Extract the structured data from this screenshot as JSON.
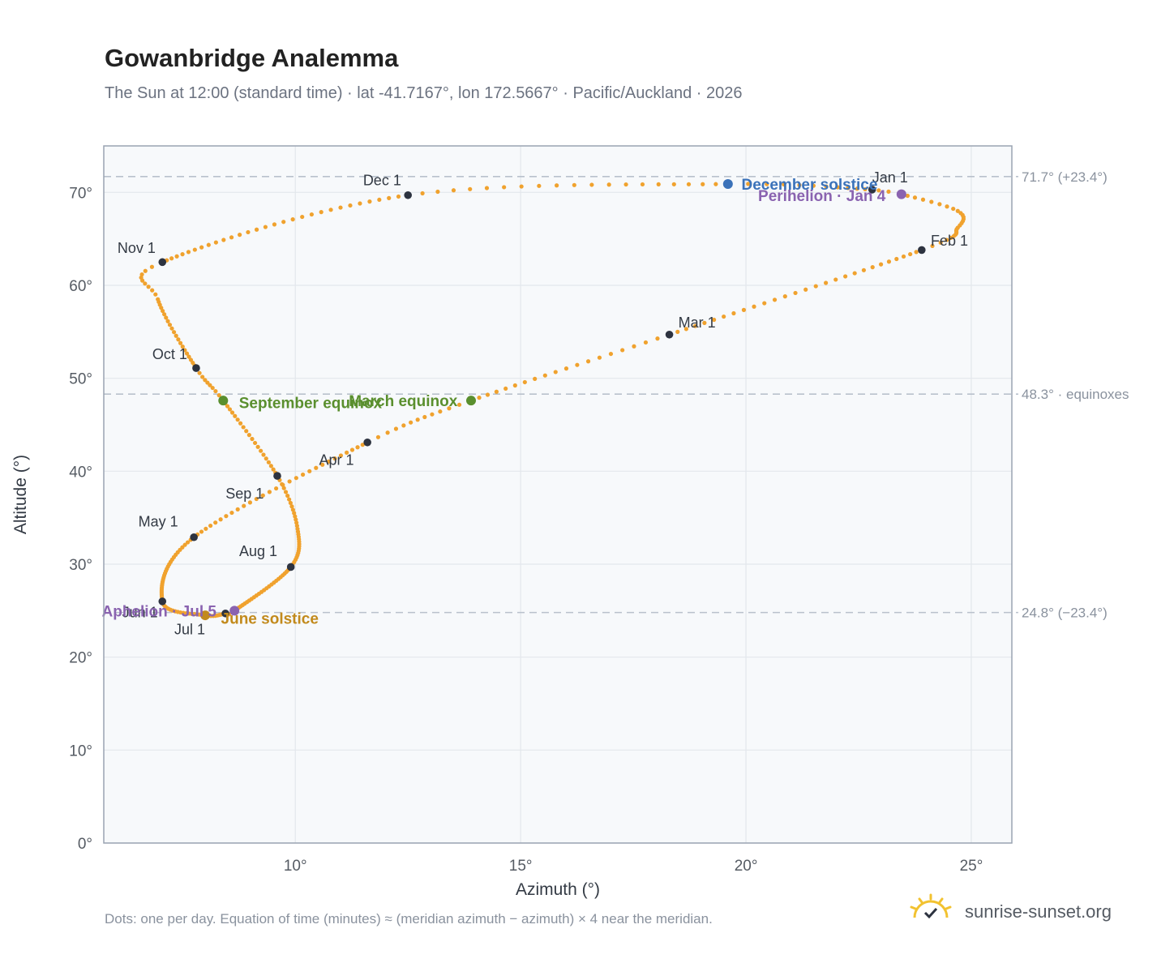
{
  "header": {
    "title": "Gowanbridge Analemma",
    "subtitle": "The Sun at 12:00 (standard time) · lat -41.7167°, lon 172.5667° · Pacific/Auckland · 2026"
  },
  "footer": {
    "note": "Dots: one per day. Equation of time (minutes) ≈ (meridian azimuth − azimuth) × 4 near the meridian.",
    "brand": "sunrise-sunset.org"
  },
  "colors": {
    "path": "#f0a22e",
    "month_marker": "#2d3340",
    "equinox": "#5a8f2e",
    "december_solstice": "#3b72b9",
    "june_solstice": "#c28a1c",
    "aphelion_perihelion": "#8a63b0",
    "reference_line": "#b9c1cc",
    "grid": "#e3e7ec",
    "plot_background": "#f7f9fb",
    "axis_frame": "#9aa4b2"
  },
  "chart_data": {
    "type": "scatter",
    "title": "Gowanbridge Analemma",
    "xlabel": "Azimuth (°)",
    "ylabel": "Altitude (°)",
    "xlim": [
      5.75,
      25.9
    ],
    "ylim": [
      0,
      75
    ],
    "x_ticks": [
      10,
      15,
      20,
      25
    ],
    "x_tick_labels": [
      "10°",
      "15°",
      "20°",
      "25°"
    ],
    "y_ticks": [
      0,
      10,
      20,
      30,
      40,
      50,
      60,
      70
    ],
    "y_tick_labels": [
      "0°",
      "10°",
      "20°",
      "30°",
      "40°",
      "50°",
      "60°",
      "70°"
    ],
    "grid": true,
    "reference_lines": [
      {
        "y": 71.7,
        "label": "71.7° (+23.4°)"
      },
      {
        "y": 48.3,
        "label": "48.3° · equinoxes"
      },
      {
        "y": 24.8,
        "label": "24.8° (−23.4°)"
      }
    ],
    "path_keypoints": [
      {
        "day": 1,
        "x": 22.8,
        "y": 70.3
      },
      {
        "day": 4,
        "x": 23.45,
        "y": 69.8
      },
      {
        "day": 12,
        "x": 24.7,
        "y": 68.0
      },
      {
        "day": 20,
        "x": 24.7,
        "y": 66.2
      },
      {
        "day": 32,
        "x": 23.9,
        "y": 63.8
      },
      {
        "day": 60,
        "x": 18.3,
        "y": 54.7
      },
      {
        "day": 79,
        "x": 13.9,
        "y": 47.6
      },
      {
        "day": 91,
        "x": 11.6,
        "y": 43.1
      },
      {
        "day": 121,
        "x": 7.75,
        "y": 32.9
      },
      {
        "day": 152,
        "x": 7.05,
        "y": 26.0
      },
      {
        "day": 172,
        "x": 8.0,
        "y": 24.5
      },
      {
        "day": 182,
        "x": 8.45,
        "y": 24.7
      },
      {
        "day": 186,
        "x": 8.65,
        "y": 25.0
      },
      {
        "day": 213,
        "x": 9.9,
        "y": 29.7
      },
      {
        "day": 229,
        "x": 10.05,
        "y": 33.8
      },
      {
        "day": 244,
        "x": 9.6,
        "y": 39.5
      },
      {
        "day": 265,
        "x": 8.4,
        "y": 47.6
      },
      {
        "day": 274,
        "x": 7.8,
        "y": 51.1
      },
      {
        "day": 295,
        "x": 6.95,
        "y": 58.5
      },
      {
        "day": 305,
        "x": 7.05,
        "y": 62.5
      },
      {
        "day": 335,
        "x": 12.5,
        "y": 69.7
      },
      {
        "day": 355,
        "x": 19.6,
        "y": 70.9
      },
      {
        "day": 366,
        "x": 22.8,
        "y": 70.3
      }
    ],
    "month_markers": [
      {
        "label": "Jan 1",
        "x": 22.8,
        "y": 70.3,
        "lx": 22.8,
        "ly": 71.6,
        "anchor": "start"
      },
      {
        "label": "Feb 1",
        "x": 23.9,
        "y": 63.8,
        "lx": 24.1,
        "ly": 64.8,
        "anchor": "start"
      },
      {
        "label": "Mar 1",
        "x": 18.3,
        "y": 54.7,
        "lx": 18.5,
        "ly": 56.0,
        "anchor": "start"
      },
      {
        "label": "Apr 1",
        "x": 11.6,
        "y": 43.1,
        "lx": 11.3,
        "ly": 41.2,
        "anchor": "end"
      },
      {
        "label": "May 1",
        "x": 7.75,
        "y": 32.9,
        "lx": 7.4,
        "ly": 34.6,
        "anchor": "end"
      },
      {
        "label": "Jun 1",
        "x": 7.05,
        "y": 26.0,
        "lx": 6.95,
        "ly": 24.8,
        "anchor": "end"
      },
      {
        "label": "Jul 1",
        "x": 8.45,
        "y": 24.7,
        "lx": 8.0,
        "ly": 23.0,
        "anchor": "end"
      },
      {
        "label": "Aug 1",
        "x": 9.9,
        "y": 29.7,
        "lx": 9.6,
        "ly": 31.4,
        "anchor": "end"
      },
      {
        "label": "Sep 1",
        "x": 9.6,
        "y": 39.5,
        "lx": 9.3,
        "ly": 37.6,
        "anchor": "end"
      },
      {
        "label": "Oct 1",
        "x": 7.8,
        "y": 51.1,
        "lx": 7.6,
        "ly": 52.6,
        "anchor": "end"
      },
      {
        "label": "Nov 1",
        "x": 7.05,
        "y": 62.5,
        "lx": 6.9,
        "ly": 64.0,
        "anchor": "end"
      },
      {
        "label": "Dec 1",
        "x": 12.5,
        "y": 69.7,
        "lx": 12.35,
        "ly": 71.3,
        "anchor": "end"
      }
    ],
    "events": [
      {
        "label": "December solstice",
        "x": 19.6,
        "y": 70.9,
        "color_key": "december_solstice",
        "lx": 19.9,
        "ly": 70.9,
        "anchor": "start"
      },
      {
        "label": "Perihelion · Jan 4",
        "x": 23.45,
        "y": 69.8,
        "color_key": "aphelion_perihelion",
        "lx": 23.1,
        "ly": 69.7,
        "anchor": "end"
      },
      {
        "label": "March equinox",
        "x": 13.9,
        "y": 47.6,
        "color_key": "equinox",
        "lx": 13.6,
        "ly": 47.6,
        "anchor": "end"
      },
      {
        "label": "September equinox",
        "x": 8.4,
        "y": 47.6,
        "color_key": "equinox",
        "lx": 8.75,
        "ly": 47.4,
        "anchor": "start"
      },
      {
        "label": "June solstice",
        "x": 8.0,
        "y": 24.5,
        "color_key": "june_solstice",
        "lx": 8.35,
        "ly": 24.2,
        "anchor": "start"
      },
      {
        "label": "Aphelion · Jul 5",
        "x": 8.65,
        "y": 25.0,
        "color_key": "aphelion_perihelion",
        "lx": 8.25,
        "ly": 25.0,
        "anchor": "end"
      }
    ]
  }
}
